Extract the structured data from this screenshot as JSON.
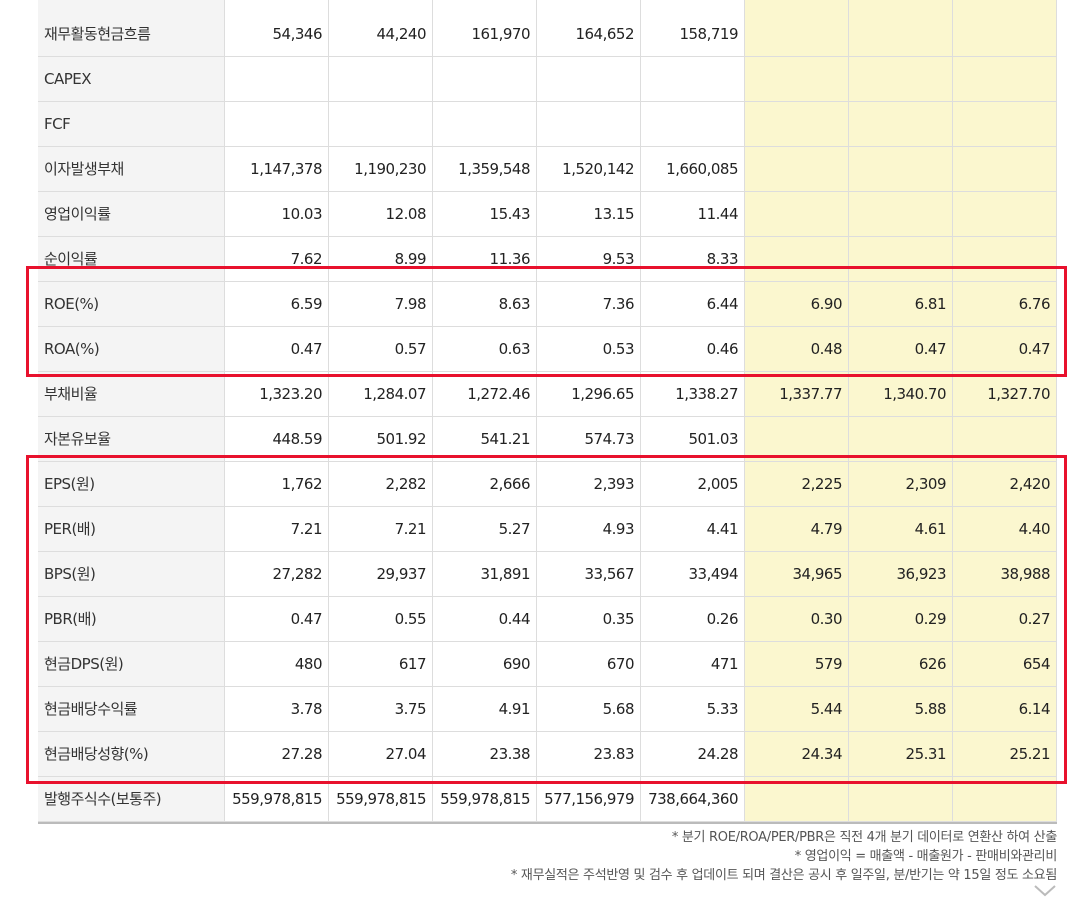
{
  "table": {
    "rows": [
      {
        "label": "재무활동현금흐름",
        "cells": [
          "54,346",
          "44,240",
          "161,970",
          "164,652",
          "158,719"
        ]
      },
      {
        "label": "CAPEX",
        "cells": []
      },
      {
        "label": "FCF",
        "cells": []
      },
      {
        "label": "이자발생부채",
        "cells": [
          "1,147,378",
          "1,190,230",
          "1,359,548",
          "1,520,142",
          "1,660,085"
        ]
      },
      {
        "label": "영업이익률",
        "cells": [
          "10.03",
          "12.08",
          "15.43",
          "13.15",
          "11.44"
        ]
      },
      {
        "label": "순이익률",
        "cells": [
          "7.62",
          "8.99",
          "11.36",
          "9.53",
          "8.33"
        ]
      },
      {
        "label": "ROE(%)",
        "cells": [
          "6.59",
          "7.98",
          "8.63",
          "7.36",
          "6.44",
          "6.90",
          "6.81",
          "6.76"
        ]
      },
      {
        "label": "ROA(%)",
        "cells": [
          "0.47",
          "0.57",
          "0.63",
          "0.53",
          "0.46",
          "0.48",
          "0.47",
          "0.47"
        ]
      },
      {
        "label": "부채비율",
        "cells": [
          "1,323.20",
          "1,284.07",
          "1,272.46",
          "1,296.65",
          "1,338.27",
          "1,337.77",
          "1,340.70",
          "1,327.70"
        ]
      },
      {
        "label": "자본유보율",
        "cells": [
          "448.59",
          "501.92",
          "541.21",
          "574.73",
          "501.03"
        ]
      },
      {
        "label": "EPS(원)",
        "cells": [
          "1,762",
          "2,282",
          "2,666",
          "2,393",
          "2,005",
          "2,225",
          "2,309",
          "2,420"
        ]
      },
      {
        "label": "PER(배)",
        "cells": [
          "7.21",
          "7.21",
          "5.27",
          "4.93",
          "4.41",
          "4.79",
          "4.61",
          "4.40"
        ]
      },
      {
        "label": "BPS(원)",
        "cells": [
          "27,282",
          "29,937",
          "31,891",
          "33,567",
          "33,494",
          "34,965",
          "36,923",
          "38,988"
        ]
      },
      {
        "label": "PBR(배)",
        "cells": [
          "0.47",
          "0.55",
          "0.44",
          "0.35",
          "0.26",
          "0.30",
          "0.29",
          "0.27"
        ]
      },
      {
        "label": "현금DPS(원)",
        "cells": [
          "480",
          "617",
          "690",
          "670",
          "471",
          "579",
          "626",
          "654"
        ]
      },
      {
        "label": "현금배당수익률",
        "cells": [
          "3.78",
          "3.75",
          "4.91",
          "5.68",
          "5.33",
          "5.44",
          "5.88",
          "6.14"
        ]
      },
      {
        "label": "현금배당성향(%)",
        "cells": [
          "27.28",
          "27.04",
          "23.38",
          "23.83",
          "24.28",
          "24.34",
          "25.31",
          "25.21"
        ]
      },
      {
        "label": "발행주식수(보통주)",
        "cells": [
          "559,978,815",
          "559,978,815",
          "559,978,815",
          "577,156,979",
          "738,664,360"
        ]
      }
    ]
  },
  "notes": [
    "* 분기 ROE/ROA/PER/PBR은 직전 4개 분기 데이터로 연환산 하여 산출",
    "* 영업이익 = 매출액 - 매출원가 - 판매비와관리비",
    "* 재무실적은 주석반영 및 검수 후 업데이트 되며 결산은 공시 후 일주일, 분/반기는 약 15일 정도 소요됨"
  ]
}
